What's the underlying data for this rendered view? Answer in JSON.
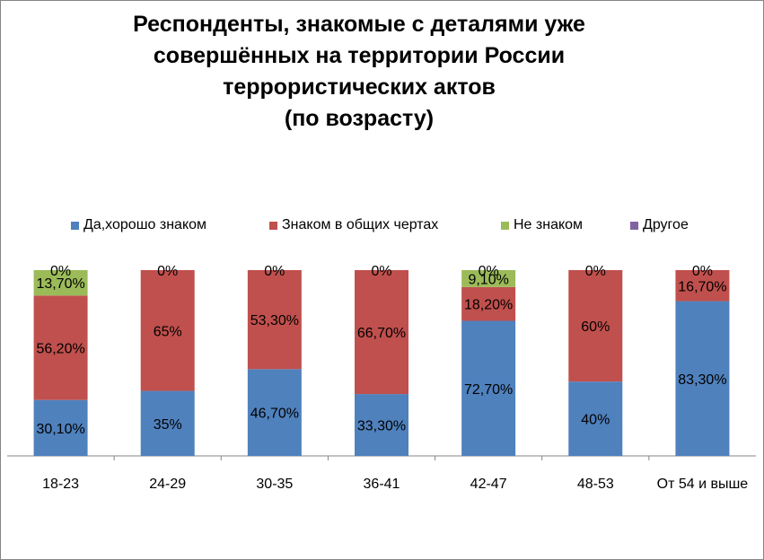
{
  "chart_data": {
    "type": "bar",
    "stacked": true,
    "title_lines": [
      "Респонденты, знакомые с деталями уже",
      "совершённых на территории России",
      "террористических актов",
      "(по возрасту)"
    ],
    "categories": [
      "18-23",
      "24-29",
      "30-35",
      "36-41",
      "42-47",
      "48-53",
      "От 54 и выше"
    ],
    "series": [
      {
        "name": "Да,хорошо знаком",
        "color": "#4F81BD",
        "values": [
          30.1,
          35,
          46.7,
          33.3,
          72.7,
          40,
          83.3
        ],
        "labels": [
          "30,10%",
          "35%",
          "46,70%",
          "33,30%",
          "72,70%",
          "40%",
          "83,30%"
        ]
      },
      {
        "name": "Знаком в общих чертах",
        "color": "#C0504D",
        "values": [
          56.2,
          65,
          53.3,
          66.7,
          18.2,
          60,
          16.7
        ],
        "labels": [
          "56,20%",
          "65%",
          "53,30%",
          "66,70%",
          "18,20%",
          "60%",
          "16,70%"
        ]
      },
      {
        "name": "Не знаком",
        "color": "#9BBB59",
        "values": [
          13.7,
          0,
          0,
          0,
          9.1,
          0,
          0
        ],
        "labels": [
          "13,70%",
          "",
          "",
          "",
          "9,10%",
          "",
          ""
        ]
      },
      {
        "name": "Другое",
        "color": "#8064A2",
        "values": [
          0,
          0,
          0,
          0,
          0,
          0,
          0
        ],
        "labels": [
          "0%",
          "0%",
          "0%",
          "0%",
          "0%",
          "0%",
          "0%"
        ]
      }
    ],
    "ylim": [
      0,
      100
    ],
    "grid": false,
    "legend_position": "top"
  }
}
